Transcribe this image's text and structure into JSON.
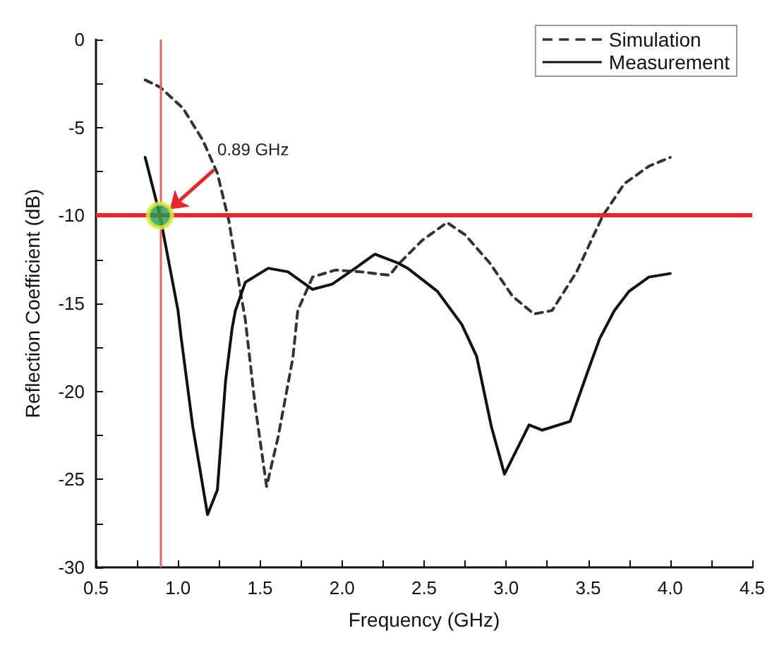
{
  "chart_data": {
    "type": "line",
    "xlabel": "Frequency (GHz)",
    "ylabel": "Reflection Coefficient (dB)",
    "xlim": [
      0.5,
      4.5
    ],
    "xticks": [
      0.5,
      {
        "value": 1,
        "label": "1.0"
      },
      1.5,
      {
        "value": 2,
        "label": "2.0"
      },
      2.5,
      {
        "value": 3,
        "label": "3.0"
      },
      3.5,
      {
        "value": 4,
        "label": "4.0"
      },
      4.5
    ],
    "ylim": [
      -30,
      0
    ],
    "yticks": [
      -30,
      -25,
      -20,
      -15,
      -10,
      -5,
      0
    ],
    "grid": false,
    "legend": "top right",
    "marker": "none",
    "series": [
      {
        "name": "Simulation",
        "color": "#333333",
        "line_style": "dashed",
        "x": [
          0.8,
          0.89,
          1.03,
          1.15,
          1.24,
          1.31,
          1.38,
          1.41,
          1.47,
          1.54,
          1.61,
          1.7,
          1.73,
          1.82,
          1.96,
          2.11,
          2.29,
          2.34,
          2.49,
          2.64,
          2.75,
          2.9,
          3.04,
          3.17,
          3.28,
          3.43,
          3.59,
          3.72,
          3.87,
          4.0
        ],
        "values": [
          -2.3,
          -2.7,
          -3.9,
          -5.7,
          -7.6,
          -10.3,
          -14.3,
          -15.9,
          -20.8,
          -25.4,
          -22.6,
          -18.1,
          -15.4,
          -13.5,
          -13.1,
          -13.2,
          -13.4,
          -12.8,
          -11.4,
          -10.4,
          -11.1,
          -12.7,
          -14.6,
          -15.6,
          -15.4,
          -13.2,
          -10.0,
          -8.2,
          -7.2,
          -6.7
        ]
      },
      {
        "name": "Measurement",
        "color": "#111111",
        "line_style": "solid",
        "x": [
          0.8,
          0.89,
          1.0,
          1.02,
          1.09,
          1.18,
          1.24,
          1.29,
          1.33,
          1.35,
          1.41,
          1.55,
          1.67,
          1.82,
          1.94,
          2.08,
          2.2,
          2.34,
          2.4,
          2.58,
          2.73,
          2.82,
          2.91,
          2.99,
          3.14,
          3.22,
          3.39,
          3.5,
          3.57,
          3.66,
          3.75,
          3.87,
          4.0
        ],
        "values": [
          -6.7,
          -10,
          -15.4,
          -17,
          -22,
          -27,
          -25.6,
          -19.4,
          -16.4,
          -15.4,
          -13.8,
          -13,
          -13.2,
          -14.2,
          -13.9,
          -13,
          -12.2,
          -12.7,
          -13,
          -14.3,
          -16.2,
          -18,
          -22,
          -24.7,
          -21.9,
          -22.2,
          -21.7,
          -18.8,
          -17,
          -15.4,
          -14.3,
          -13.5,
          -13.3
        ]
      },
      {
        "type": "scatter",
        "color": "#1e9e4a",
        "marker": "circle",
        "x": [
          0.89
        ],
        "values": [
          -10
        ]
      }
    ],
    "ref_lines": [
      {
        "axis": "x",
        "value": 0.89,
        "color": "#e06666"
      },
      {
        "axis": "y",
        "value": -10,
        "color": "#e8262b"
      }
    ],
    "annotations": [
      {
        "text": "0.89 GHz",
        "x": 0.89,
        "y": -10
      }
    ]
  }
}
